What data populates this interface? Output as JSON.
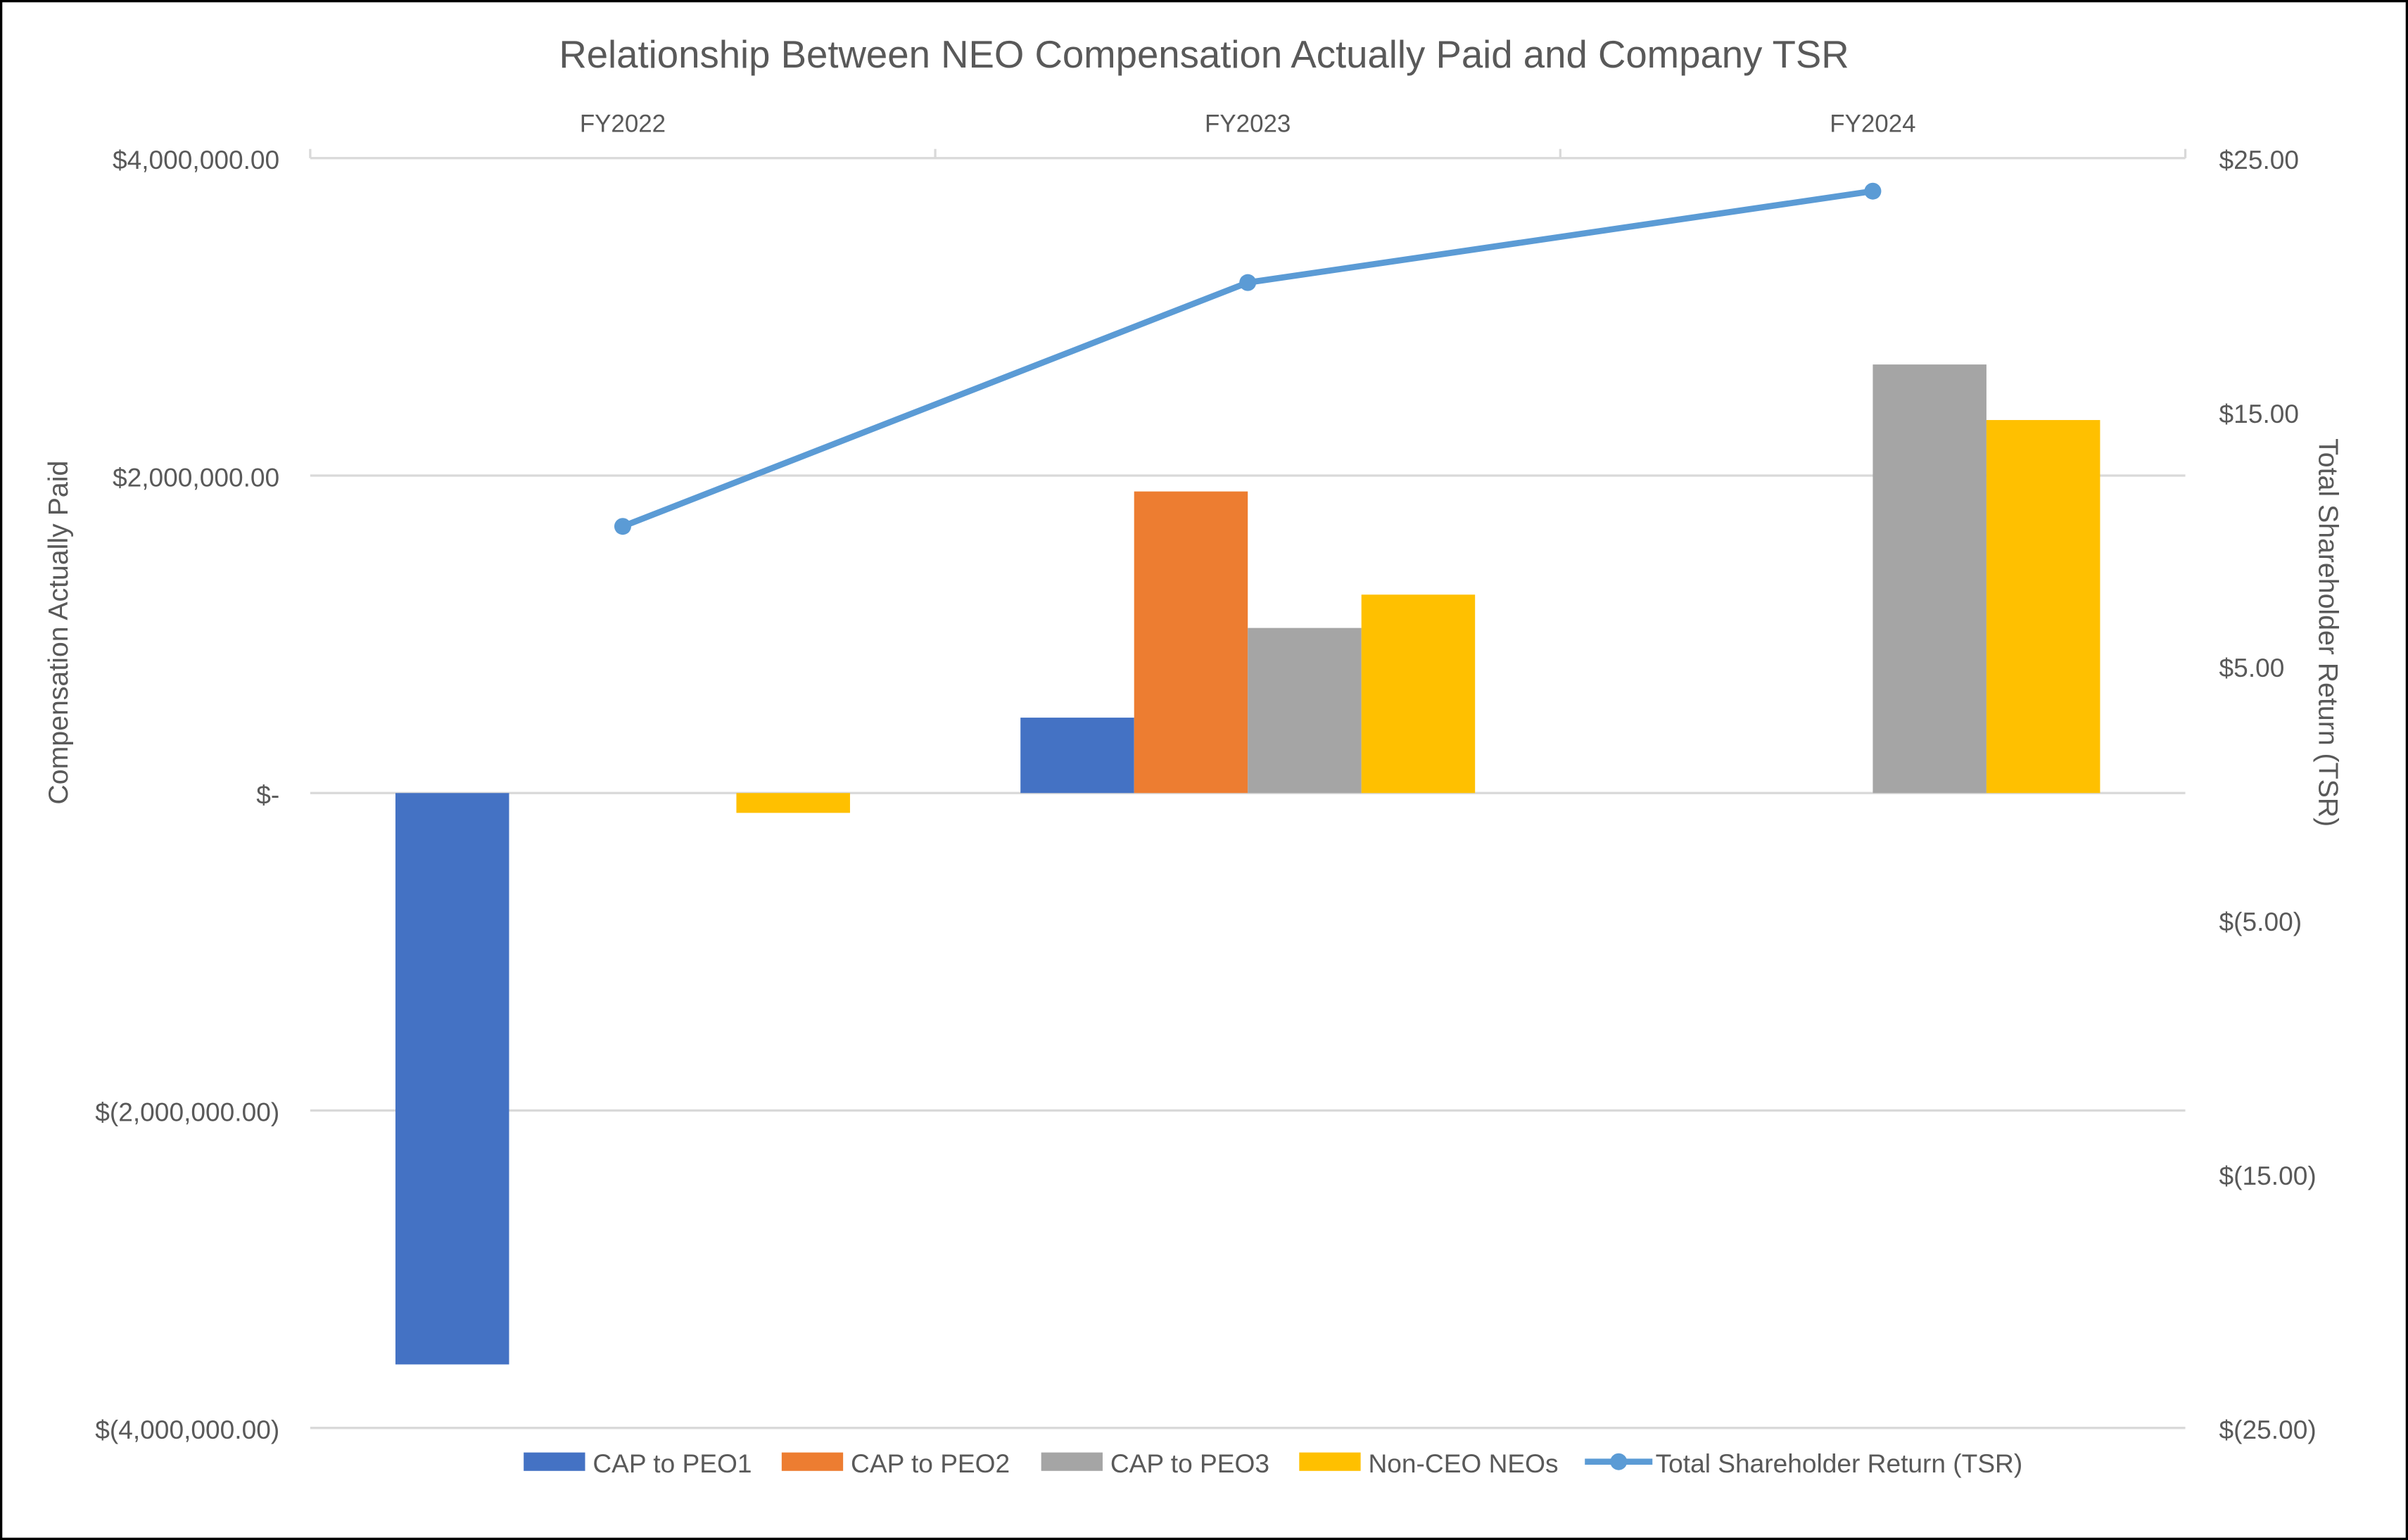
{
  "chart_data": {
    "type": "bar",
    "title": "Relationship Between NEO Compensation Actually Paid and Company TSR",
    "categories": [
      "FY2022",
      "FY2023",
      "FY2024"
    ],
    "ylabel": "Compensation Actually Paid",
    "y2label": "Total Shareholder Return (TSR)",
    "ylim": [
      -4000000,
      4000000
    ],
    "y2lim": [
      -25,
      25
    ],
    "yticks": [
      {
        "value": 4000000,
        "label": "$4,000,000.00"
      },
      {
        "value": 2000000,
        "label": "$2,000,000.00"
      },
      {
        "value": 0,
        "label": "$-"
      },
      {
        "value": -2000000,
        "label": "$(2,000,000.00)"
      },
      {
        "value": -4000000,
        "label": "$(4,000,000.00)"
      }
    ],
    "y2ticks": [
      {
        "value": 25,
        "label": "$25.00"
      },
      {
        "value": 15,
        "label": "$15.00"
      },
      {
        "value": 5,
        "label": "$5.00"
      },
      {
        "value": -5,
        "label": "$(5.00)"
      },
      {
        "value": -15,
        "label": "$(15.00)"
      },
      {
        "value": -25,
        "label": "$(25.00)"
      }
    ],
    "grid": true,
    "legend_position": "bottom",
    "series": [
      {
        "name": "CAP to PEO1",
        "type": "bar",
        "axis": "left",
        "color": "#4472C4",
        "values": [
          -3600000,
          475000,
          null
        ]
      },
      {
        "name": "CAP to PEO2",
        "type": "bar",
        "axis": "left",
        "color": "#ED7D31",
        "values": [
          null,
          1900000,
          null
        ]
      },
      {
        "name": "CAP to PEO3",
        "type": "bar",
        "axis": "left",
        "color": "#A5A5A5",
        "values": [
          null,
          1040000,
          2700000
        ]
      },
      {
        "name": "Non-CEO NEOs",
        "type": "bar",
        "axis": "left",
        "color": "#FFC000",
        "values": [
          -125000,
          1250000,
          2350000
        ]
      },
      {
        "name": "Total Shareholder Return (TSR)",
        "type": "line",
        "axis": "right",
        "color": "#5B9BD5",
        "values": [
          10.5,
          20.1,
          23.7
        ]
      }
    ]
  }
}
